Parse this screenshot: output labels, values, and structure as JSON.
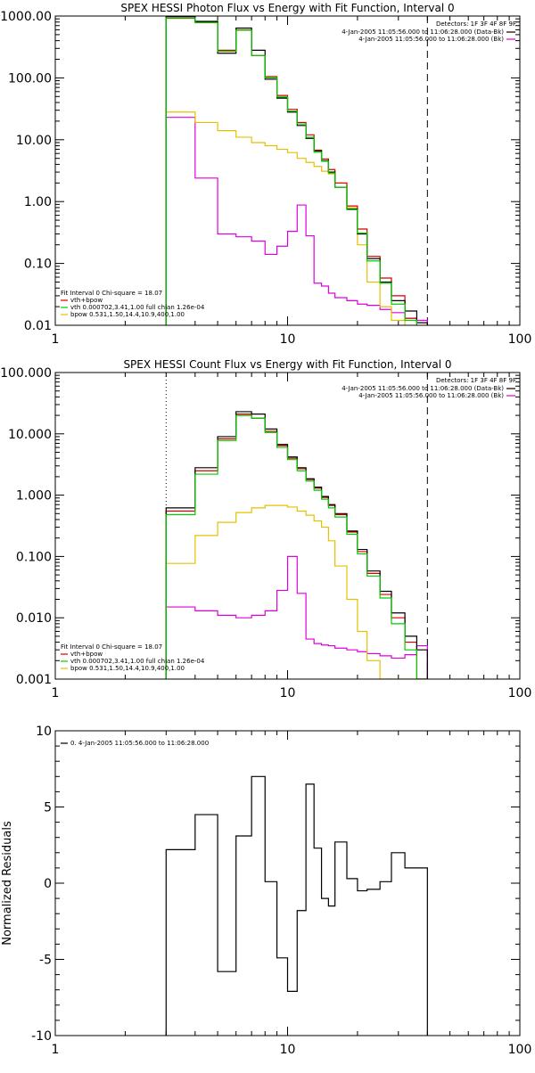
{
  "colors": {
    "data": "#000000",
    "total": "#d40000",
    "vth": "#00cc00",
    "bpow": "#e6c000",
    "bk": "#dd00dd"
  },
  "chart_data": [
    {
      "type": "line",
      "title": "SPEX HESSI Photon Flux vs Energy with Fit Function, Interval 0",
      "xscale": "log",
      "yscale": "log",
      "xlim": [
        1,
        100
      ],
      "ylim": [
        0.01,
        1000
      ],
      "xticks": [
        {
          "v": 1,
          "l": "1"
        },
        {
          "v": 10,
          "l": "10"
        },
        {
          "v": 100,
          "l": "100"
        }
      ],
      "yticks": [
        {
          "v": 1000,
          "l": "1000.00"
        },
        {
          "v": 100,
          "l": "100.00"
        },
        {
          "v": 10,
          "l": "10.00"
        },
        {
          "v": 1,
          "l": "1.00"
        },
        {
          "v": 0.1,
          "l": "0.10"
        },
        {
          "v": 0.01,
          "l": "0.01"
        }
      ],
      "edges": [
        3,
        4,
        5,
        6,
        7,
        8,
        9,
        10,
        11,
        12,
        13,
        14,
        15,
        16,
        18,
        20,
        22,
        25,
        28,
        32,
        36,
        40
      ],
      "series": [
        {
          "key": "data",
          "values": [
            980,
            820,
            250,
            640,
            280,
            95,
            47,
            28,
            17,
            10.5,
            6.6,
            4.6,
            3.0,
            1.7,
            0.76,
            0.3,
            0.12,
            0.05,
            0.025,
            0.017,
            0.011
          ]
        },
        {
          "key": "total",
          "values": [
            920,
            800,
            280,
            600,
            230,
            105,
            52,
            31,
            19,
            12,
            6.8,
            4.9,
            3.3,
            2.0,
            0.85,
            0.36,
            0.13,
            0.058,
            0.03,
            0.013,
            0.005
          ]
        },
        {
          "key": "vth",
          "values": [
            930,
            780,
            270,
            590,
            230,
            100,
            49,
            29,
            18,
            11,
            6.3,
            4.5,
            2.9,
            1.7,
            0.74,
            0.31,
            0.11,
            0.048,
            0.022,
            0.012,
            0.007
          ]
        },
        {
          "key": "bpow",
          "values": [
            28,
            19,
            14,
            11,
            9,
            8,
            7,
            6.2,
            5.0,
            4.3,
            3.7,
            3.1,
            2.8,
            2.0,
            0.8,
            0.2,
            0.05,
            0.02,
            0.012,
            0.008,
            0.004
          ]
        },
        {
          "key": "bk",
          "values": [
            23,
            2.4,
            0.3,
            0.27,
            0.23,
            0.14,
            0.19,
            0.33,
            0.88,
            0.28,
            0.048,
            0.043,
            0.033,
            0.028,
            0.025,
            0.022,
            0.021,
            0.018,
            0.016,
            0.013,
            0.012
          ]
        }
      ],
      "vlines": [
        {
          "x": 3,
          "style": "dotted",
          "color": "#e6c000"
        },
        {
          "x": 40,
          "style": "dashed",
          "color": "#000000"
        }
      ],
      "legend_top": {
        "header": "Detectors: 1F 3F 4F 8F 9F",
        "lines": [
          {
            "text": "4-Jan-2005 11:05:56.000 to 11:06:28.000 (Data-Bk)",
            "color": "#000000"
          },
          {
            "text": "4-Jan-2005 11:05:56.000 to 11:06:28.000 (Bk)",
            "color": "#dd00dd"
          }
        ]
      },
      "legend_fit": {
        "header": "Fit Interval  0    Chi-square = 18.07",
        "lines": [
          {
            "text": "vth+bpow",
            "color": "#d40000"
          },
          {
            "text": "vth 0.000702,3.41,1.00  full chian 1.26e-04",
            "color": "#00cc00"
          },
          {
            "text": "bpow 0.531,1.50,14.4,10.9,400,1.00",
            "color": "#e6c000"
          }
        ]
      }
    },
    {
      "type": "line",
      "title": "SPEX HESSI Count Flux vs Energy with Fit Function, Interval 0",
      "xscale": "log",
      "yscale": "log",
      "xlim": [
        1,
        100
      ],
      "ylim": [
        0.001,
        100
      ],
      "xticks": [
        {
          "v": 1,
          "l": "1"
        },
        {
          "v": 10,
          "l": "10"
        },
        {
          "v": 100,
          "l": "100"
        }
      ],
      "yticks": [
        {
          "v": 100,
          "l": "100.000"
        },
        {
          "v": 10,
          "l": "10.000"
        },
        {
          "v": 1,
          "l": "1.000"
        },
        {
          "v": 0.1,
          "l": "0.100"
        },
        {
          "v": 0.01,
          "l": "0.010"
        },
        {
          "v": 0.001,
          "l": "0.001"
        }
      ],
      "edges": [
        3,
        4,
        5,
        6,
        7,
        8,
        9,
        10,
        11,
        12,
        13,
        14,
        15,
        16,
        18,
        20,
        22,
        25,
        28,
        32,
        36,
        40
      ],
      "series": [
        {
          "key": "data",
          "values": [
            0.62,
            2.8,
            9.0,
            23,
            21,
            12,
            6.7,
            4.2,
            2.8,
            1.85,
            1.35,
            0.95,
            0.7,
            0.5,
            0.26,
            0.13,
            0.058,
            0.027,
            0.012,
            0.005,
            0.003
          ]
        },
        {
          "key": "total",
          "values": [
            0.55,
            2.5,
            8.3,
            21,
            18,
            11,
            6.4,
            4.0,
            2.7,
            1.8,
            1.3,
            0.92,
            0.68,
            0.48,
            0.25,
            0.12,
            0.053,
            0.024,
            0.01,
            0.004,
            0.001
          ]
        },
        {
          "key": "vth",
          "values": [
            0.48,
            2.2,
            7.8,
            20,
            18,
            10.5,
            6.0,
            3.8,
            2.5,
            1.7,
            1.2,
            0.86,
            0.62,
            0.44,
            0.23,
            0.11,
            0.048,
            0.021,
            0.008,
            0.003,
            0.001
          ]
        },
        {
          "key": "bpow",
          "values": [
            0.077,
            0.22,
            0.36,
            0.52,
            0.62,
            0.68,
            0.68,
            0.64,
            0.55,
            0.47,
            0.38,
            0.3,
            0.18,
            0.07,
            0.02,
            0.006,
            0.002,
            0.001,
            0.001,
            0.001,
            0.001
          ]
        },
        {
          "key": "bk",
          "values": [
            0.015,
            0.013,
            0.011,
            0.01,
            0.011,
            0.013,
            0.028,
            0.1,
            0.025,
            0.0045,
            0.0038,
            0.0036,
            0.0035,
            0.0032,
            0.003,
            0.0028,
            0.0026,
            0.0024,
            0.0022,
            0.0025,
            0.0035
          ]
        }
      ],
      "vlines": [
        {
          "x": 3,
          "style": "dotted",
          "color": "#000000"
        },
        {
          "x": 40,
          "style": "dashed",
          "color": "#000000"
        }
      ],
      "legend_top": {
        "header": "Detectors: 1F 3F 4F 8F 9F",
        "lines": [
          {
            "text": "4-Jan-2005 11:05:56.000 to 11:06:28.000 (Data-Bk)",
            "color": "#000000"
          },
          {
            "text": "4-Jan-2005 11:05:56.000 to 11:06:28.000 (Bk)",
            "color": "#dd00dd"
          }
        ]
      },
      "legend_fit": {
        "header": "Fit Interval  0    Chi-square = 18.07",
        "lines": [
          {
            "text": "vth+bpow",
            "color": "#d40000"
          },
          {
            "text": "vth 0.000702,3.41,1.00  full chian 1.26e-04",
            "color": "#00cc00"
          },
          {
            "text": "bpow 0.531,1.50,14.4,10.9,400,1.00",
            "color": "#e6c000"
          }
        ]
      }
    },
    {
      "type": "line",
      "title": "",
      "ylabel": "Normalized Residuals",
      "xscale": "log",
      "yscale": "linear",
      "xlim": [
        1,
        100
      ],
      "ylim": [
        -10,
        10
      ],
      "xticks": [
        {
          "v": 1,
          "l": "1"
        },
        {
          "v": 10,
          "l": "10"
        },
        {
          "v": 100,
          "l": "100"
        }
      ],
      "yticks": [
        {
          "v": 10,
          "l": "10"
        },
        {
          "v": 5,
          "l": "5"
        },
        {
          "v": 0,
          "l": "0"
        },
        {
          "v": -5,
          "l": "-5"
        },
        {
          "v": -10,
          "l": "-10"
        }
      ],
      "edges": [
        3,
        4,
        5,
        6,
        7,
        8,
        9,
        10,
        11,
        12,
        13,
        14,
        15,
        16,
        18,
        20,
        22,
        25,
        28,
        32,
        36,
        40
      ],
      "series": [
        {
          "key": "data",
          "values": [
            2.2,
            4.5,
            -5.8,
            3.1,
            7.0,
            0.1,
            -4.9,
            -7.1,
            -1.8,
            6.5,
            2.3,
            -1.0,
            -1.5,
            2.7,
            0.3,
            -0.5,
            -0.4,
            0.1,
            2.0,
            1.0,
            1.0
          ]
        }
      ],
      "vlines": [],
      "legend_top": null,
      "legend_fit": {
        "header": "",
        "lines": [
          {
            "text": "0.  4-Jan-2005 11:05:56.000 to 11:06:28.000",
            "color": "#000000"
          }
        ]
      }
    }
  ]
}
